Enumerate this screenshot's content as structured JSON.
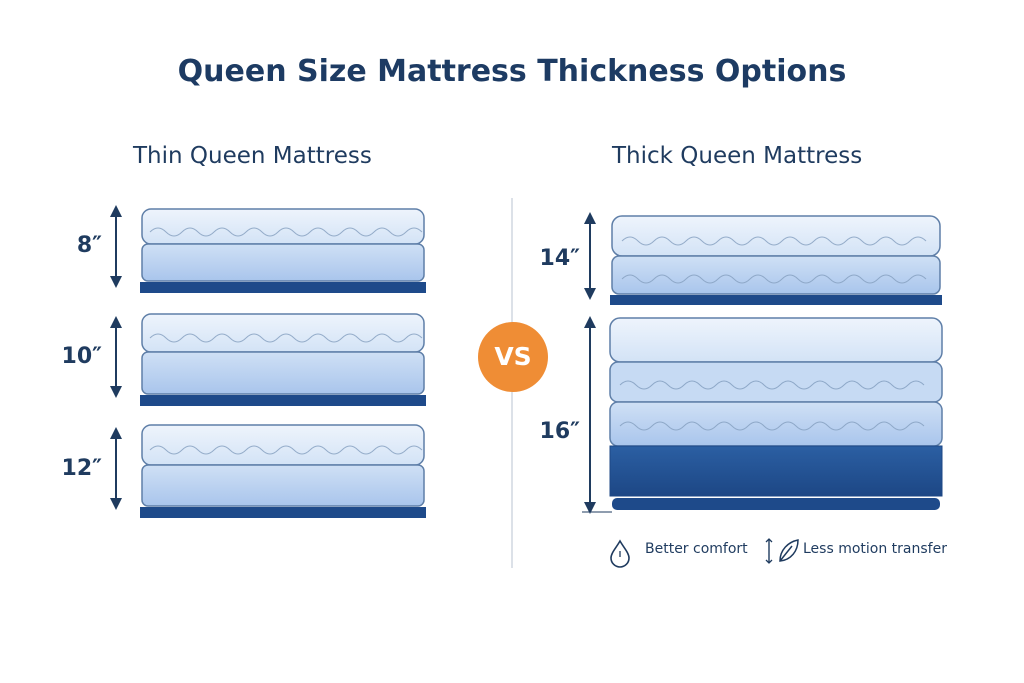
{
  "title": "Queen Size Mattress Thickness Options",
  "thin": {
    "heading": "Thin Queen Mattress",
    "sizes": [
      "8″",
      "10″",
      "12″"
    ]
  },
  "thick": {
    "heading": "Thick Queen Mattress",
    "sizes": [
      "14″",
      "16″"
    ]
  },
  "vs_label": "VS",
  "features": [
    {
      "icon": "droplet-icon",
      "label": "Better comfort"
    },
    {
      "icon": "leaf-icon",
      "label": "Less motion transfer"
    }
  ],
  "colors": {
    "title": "#1d3b63",
    "accent": "#ef8d35",
    "base": "#1e4a8a",
    "foam_light": "#dbe8f8",
    "foam_mid": "#b9d1f0"
  }
}
